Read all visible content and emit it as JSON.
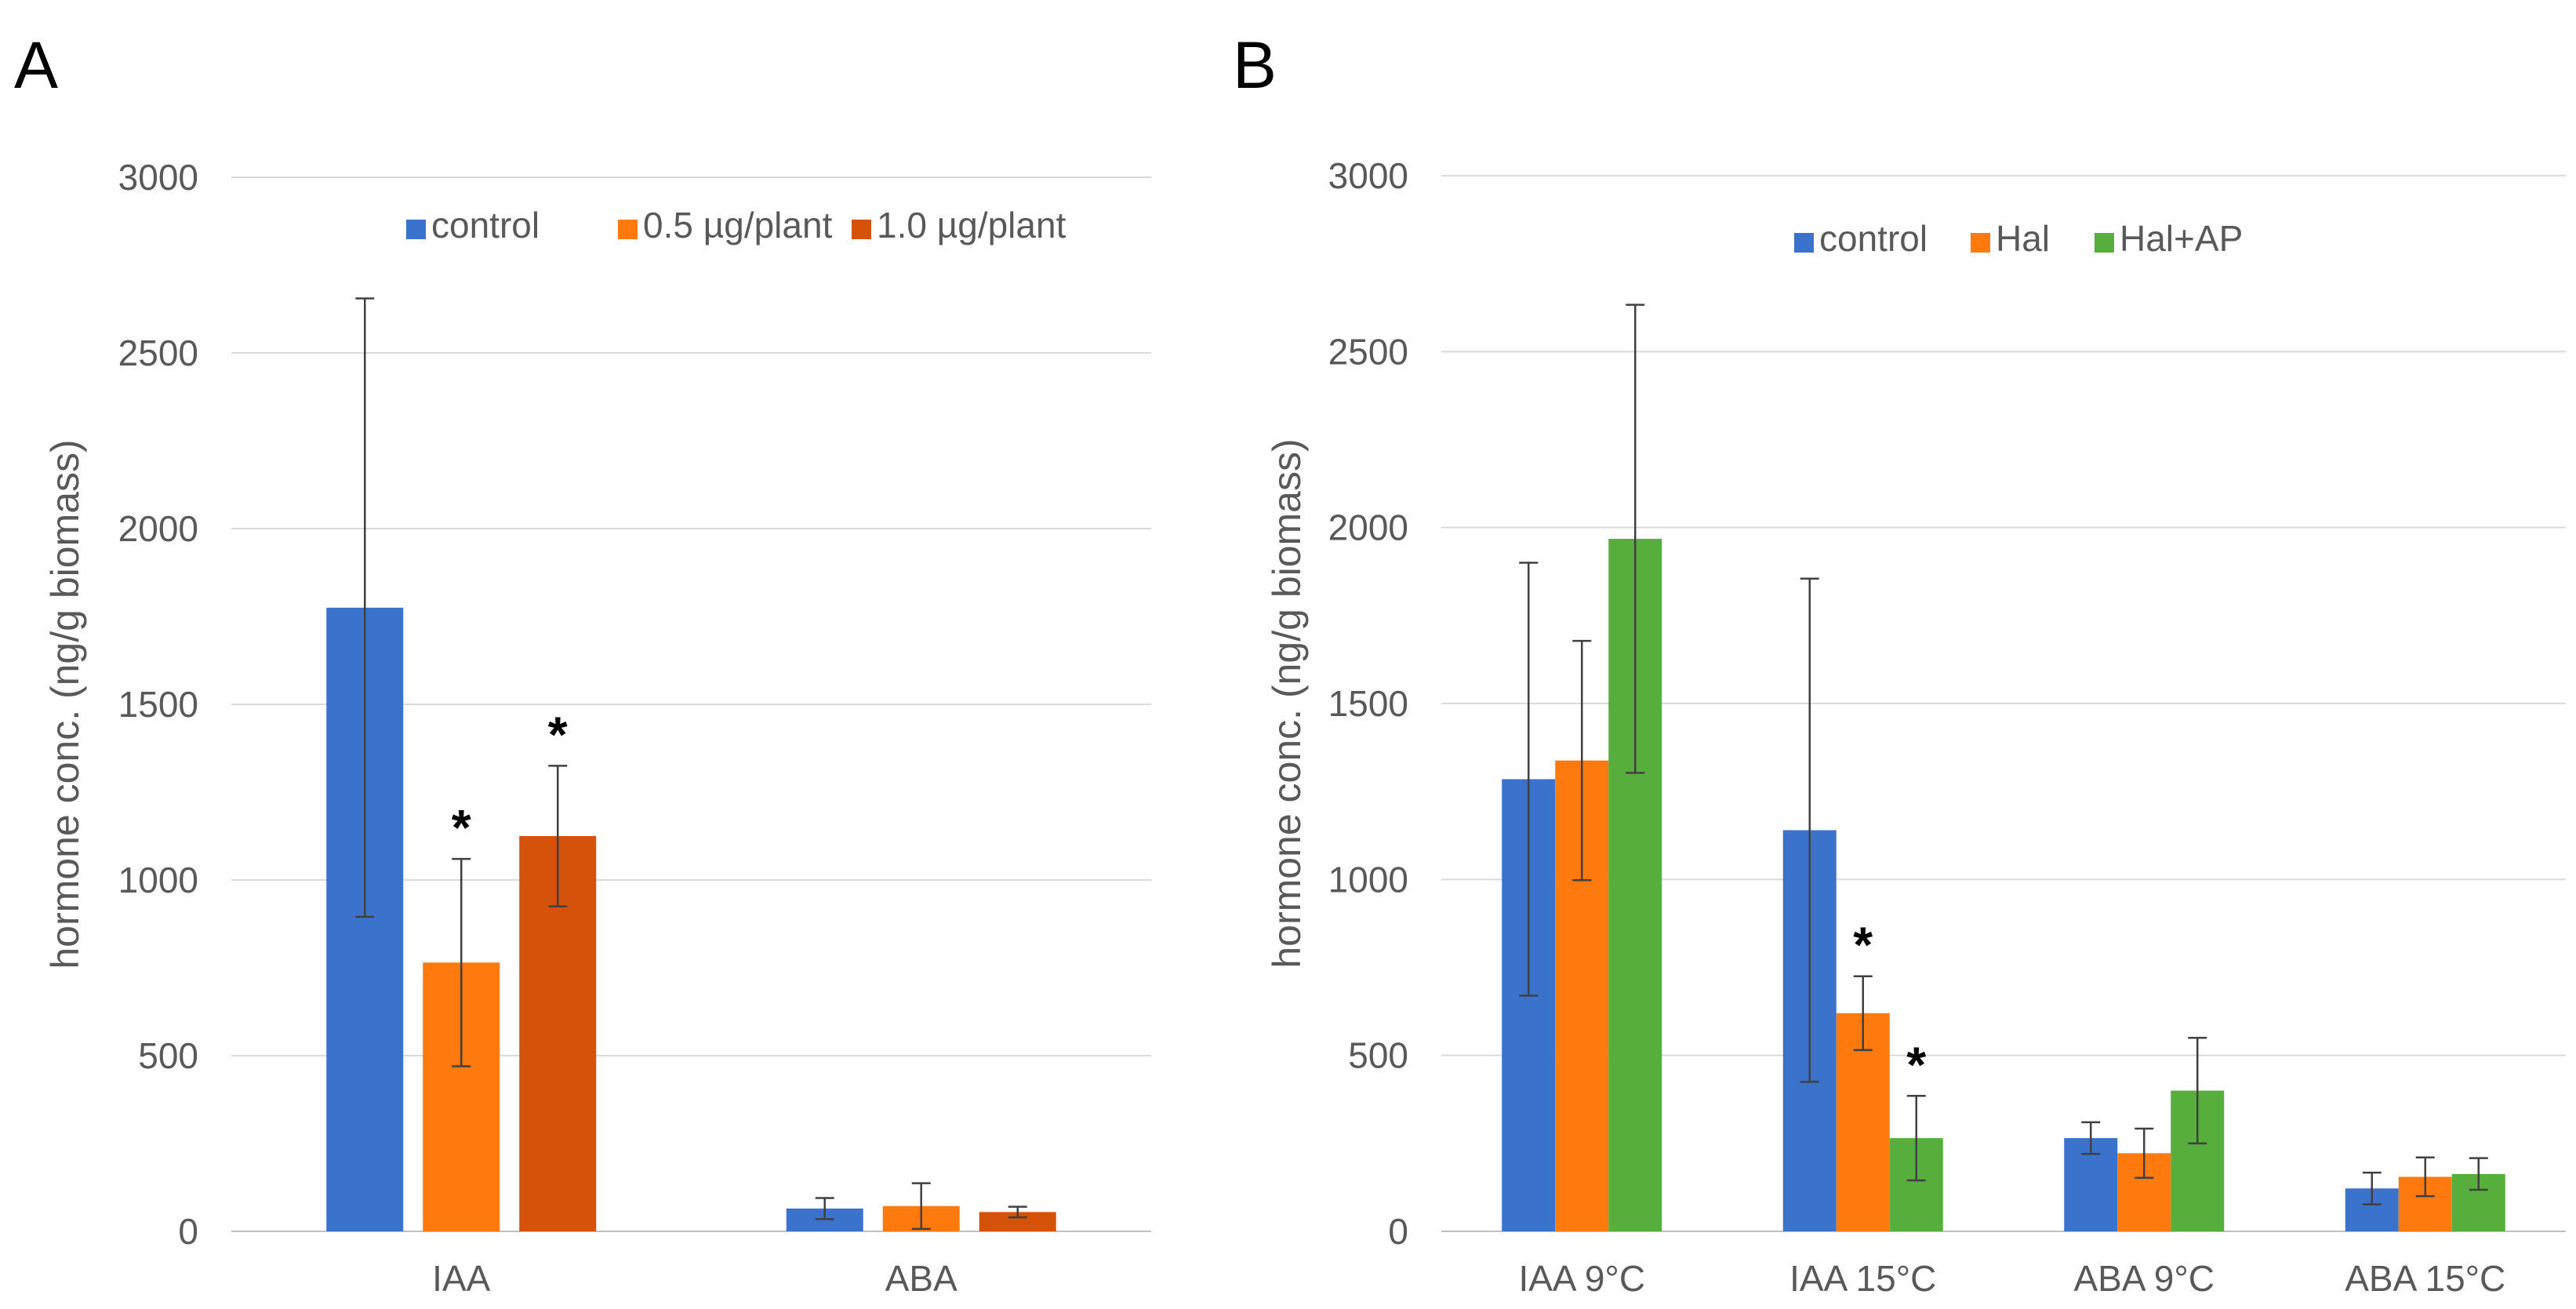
{
  "figure": {
    "panel_letters": [
      "A",
      "B"
    ]
  },
  "chart_data": [
    {
      "type": "bar",
      "panel": "A",
      "title": "",
      "xlabel": "",
      "ylabel": "hormone conc. (ng/g biomass)",
      "ylim": [
        0,
        3000
      ],
      "yticks": [
        0,
        500,
        1000,
        1500,
        2000,
        2500,
        3000
      ],
      "grid": true,
      "legend": "top",
      "categories": [
        "IAA",
        "ABA"
      ],
      "series": [
        {
          "name": "control",
          "color": "#3A72CC",
          "values": [
            1775,
            65
          ],
          "errors": [
            880,
            30
          ],
          "significant": [
            false,
            false
          ]
        },
        {
          "name": "0.5 µg/plant",
          "color": "#FF7A0E",
          "values": [
            765,
            72
          ],
          "errors": [
            295,
            65
          ],
          "significant": [
            true,
            false
          ]
        },
        {
          "name": "1.0 µg/plant",
          "color": "#D45209",
          "values": [
            1125,
            55
          ],
          "errors": [
            200,
            15
          ],
          "significant": [
            true,
            false
          ]
        }
      ],
      "annotation_marker": "*"
    },
    {
      "type": "bar",
      "panel": "B",
      "title": "",
      "xlabel": "",
      "ylabel": "hormone conc. (ng/g biomass)",
      "ylim": [
        0,
        3000
      ],
      "yticks": [
        0,
        500,
        1000,
        1500,
        2000,
        2500,
        3000
      ],
      "grid": true,
      "legend": "top",
      "categories": [
        "IAA 9°C",
        "IAA 15°C",
        "ABA 9°C",
        "ABA 15°C"
      ],
      "series": [
        {
          "name": "control",
          "color": "#3A72CC",
          "values": [
            1285,
            1140,
            265,
            122
          ],
          "errors": [
            615,
            715,
            45,
            45
          ],
          "significant": [
            false,
            false,
            false,
            false
          ]
        },
        {
          "name": "Hal",
          "color": "#FF7A0E",
          "values": [
            1338,
            620,
            222,
            155
          ],
          "errors": [
            340,
            105,
            70,
            55
          ],
          "significant": [
            false,
            true,
            false,
            false
          ]
        },
        {
          "name": "Hal+AP",
          "color": "#57AE3C",
          "values": [
            1968,
            265,
            400,
            163
          ],
          "errors": [
            665,
            120,
            150,
            45
          ],
          "significant": [
            false,
            true,
            false,
            false
          ]
        }
      ],
      "annotation_marker": "*"
    }
  ]
}
